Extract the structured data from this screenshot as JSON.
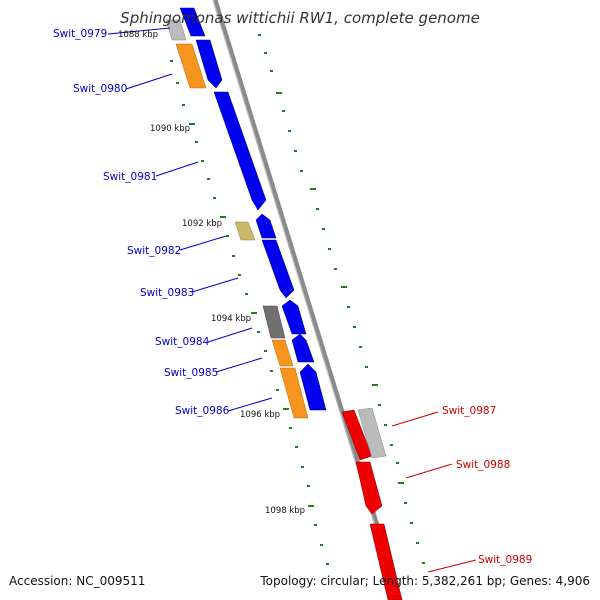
{
  "title": "Sphingomonas wittichii RW1, complete genome",
  "footer": {
    "accession": "Accession: NC_009511",
    "summary": "Topology: circular; Length: 5,382,261 bp; Genes: 4,906"
  },
  "scale_labels": [
    "1088 kbp",
    "1090 kbp",
    "1092 kbp",
    "1094 kbp",
    "1096 kbp",
    "1098 kbp"
  ],
  "gene_labels": [
    "Swit_0979",
    "Swit_0980",
    "Swit_0981",
    "Swit_0982",
    "Swit_0983",
    "Swit_0984",
    "Swit_0985",
    "Swit_0986",
    "Swit_0987",
    "Swit_0988",
    "Swit_0989"
  ],
  "colors": {
    "left_label": "#0000cc",
    "right_label": "#cc0000",
    "blue_cds": "#0000ee",
    "red_cds": "#ee0000",
    "orange_cds": "#f7941d",
    "khaki_cds": "#c8b96b",
    "dark_gray_cds": "#707070",
    "light_gray_cds": "#bbbbbb",
    "backbone": "#888888",
    "tick": "#1f7f1f"
  }
}
